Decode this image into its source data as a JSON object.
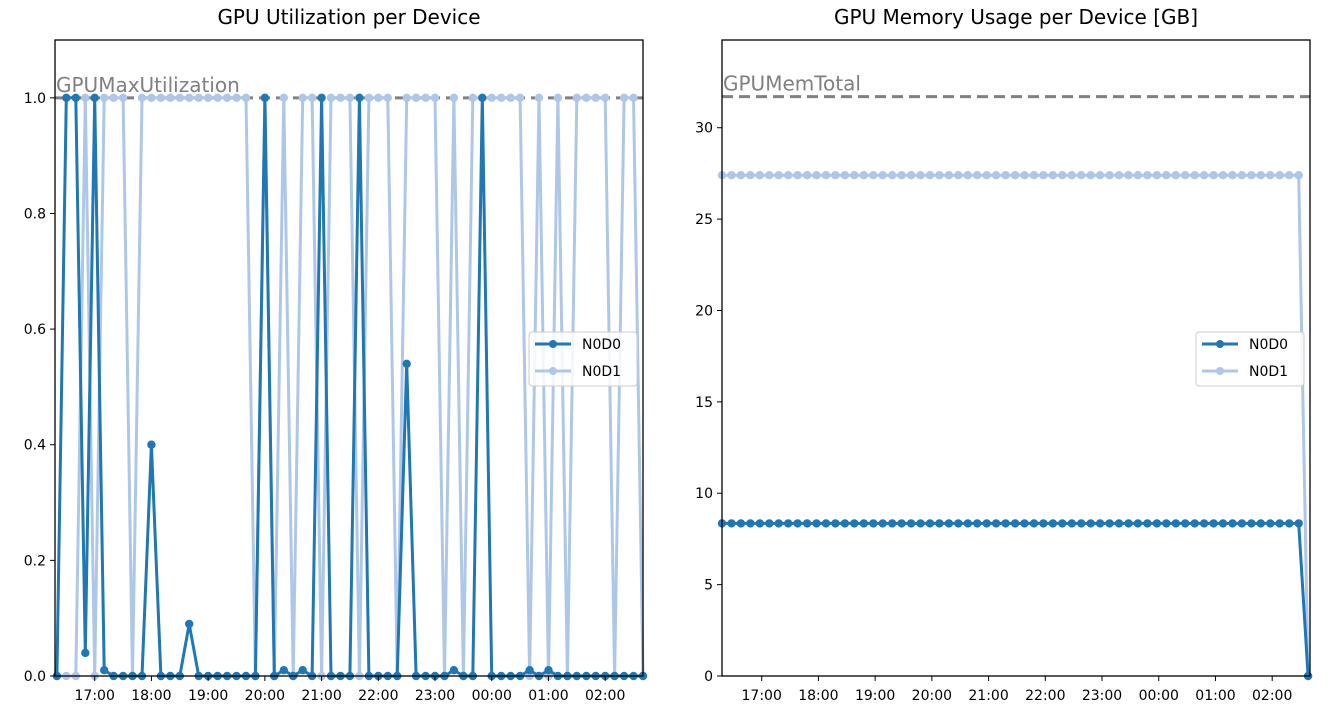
{
  "colors": {
    "N0D0": "#1f77b4",
    "N0D1": "#aec7e8",
    "reference": "#808080"
  },
  "chart_data": [
    {
      "type": "line",
      "title": "GPU Utilization per Device",
      "xlabel": "",
      "ylabel": "",
      "x_ticks": [
        "17:00",
        "18:00",
        "19:00",
        "20:00",
        "21:00",
        "22:00",
        "23:00",
        "00:00",
        "01:00",
        "02:00"
      ],
      "y_ticks": [
        "0.0",
        "0.2",
        "0.4",
        "0.6",
        "0.8",
        "1.0"
      ],
      "ylim": [
        0,
        1.1
      ],
      "xlim": [
        "16:18",
        "02:40"
      ],
      "reference_line": {
        "label": "GPUMaxUtilization",
        "value": 1.0
      },
      "legend_position": "center-right",
      "x": [
        "16:20",
        "16:30",
        "16:40",
        "16:50",
        "17:00",
        "17:10",
        "17:20",
        "17:30",
        "17:40",
        "17:50",
        "18:00",
        "18:10",
        "18:20",
        "18:30",
        "18:40",
        "18:50",
        "19:00",
        "19:10",
        "19:20",
        "19:30",
        "19:40",
        "19:50",
        "20:00",
        "20:10",
        "20:20",
        "20:30",
        "20:40",
        "20:50",
        "21:00",
        "21:10",
        "21:20",
        "21:30",
        "21:40",
        "21:50",
        "22:00",
        "22:10",
        "22:20",
        "22:30",
        "22:40",
        "22:50",
        "23:00",
        "23:10",
        "23:20",
        "23:30",
        "23:40",
        "23:50",
        "00:00",
        "00:10",
        "00:20",
        "00:30",
        "00:40",
        "00:50",
        "01:00",
        "01:10",
        "01:20",
        "01:30",
        "01:40",
        "01:50",
        "02:00",
        "02:10",
        "02:20",
        "02:30",
        "02:40"
      ],
      "series": [
        {
          "name": "N0D0",
          "values": [
            0,
            1.0,
            1.0,
            0.04,
            1.0,
            0.01,
            0,
            0,
            0,
            0,
            0.4,
            0,
            0,
            0,
            0.09,
            0,
            0,
            0,
            0,
            0,
            0,
            0,
            1.0,
            0,
            0.01,
            0,
            0.01,
            0,
            1.0,
            0,
            0,
            0,
            1.0,
            0,
            0,
            0,
            0,
            0.54,
            0,
            0,
            0,
            0,
            0.01,
            0,
            0,
            1.0,
            0,
            0,
            0,
            0,
            0.01,
            0,
            0.01,
            0,
            0,
            0,
            0,
            0,
            0,
            0,
            0,
            0,
            0
          ]
        },
        {
          "name": "N0D1",
          "values": [
            0,
            0,
            0,
            1.0,
            0,
            1.0,
            1.0,
            1.0,
            0,
            1.0,
            1.0,
            1.0,
            1.0,
            1.0,
            1.0,
            1.0,
            1.0,
            1.0,
            1.0,
            1.0,
            1.0,
            0,
            1.0,
            0,
            1.0,
            0,
            1.0,
            1.0,
            0,
            1.0,
            1.0,
            1.0,
            0,
            1.0,
            1.0,
            1.0,
            0,
            1.0,
            1.0,
            1.0,
            1.0,
            0,
            1.0,
            0,
            1.0,
            1.0,
            1.0,
            1.0,
            1.0,
            1.0,
            0,
            1.0,
            0,
            1.0,
            0,
            1.0,
            1.0,
            1.0,
            1.0,
            0,
            1.0,
            1.0,
            0
          ]
        }
      ]
    },
    {
      "type": "line",
      "title": "GPU Memory Usage per Device [GB]",
      "xlabel": "",
      "ylabel": "",
      "x_ticks": [
        "17:00",
        "18:00",
        "19:00",
        "20:00",
        "21:00",
        "22:00",
        "23:00",
        "00:00",
        "01:00",
        "02:00"
      ],
      "y_ticks": [
        "0",
        "5",
        "10",
        "15",
        "20",
        "25",
        "30"
      ],
      "ylim": [
        0,
        34.8
      ],
      "xlim": [
        "16:18",
        "02:40"
      ],
      "reference_line": {
        "label": "GPUMemTotal",
        "value": 31.7
      },
      "legend_position": "center-right",
      "x_start": "16:18",
      "x_end": "02:40",
      "x_step_minutes": 10,
      "series": [
        {
          "name": "N0D0",
          "constant": 8.35,
          "final": 0
        },
        {
          "name": "N0D1",
          "constant": 27.4,
          "final": 0
        }
      ]
    }
  ]
}
